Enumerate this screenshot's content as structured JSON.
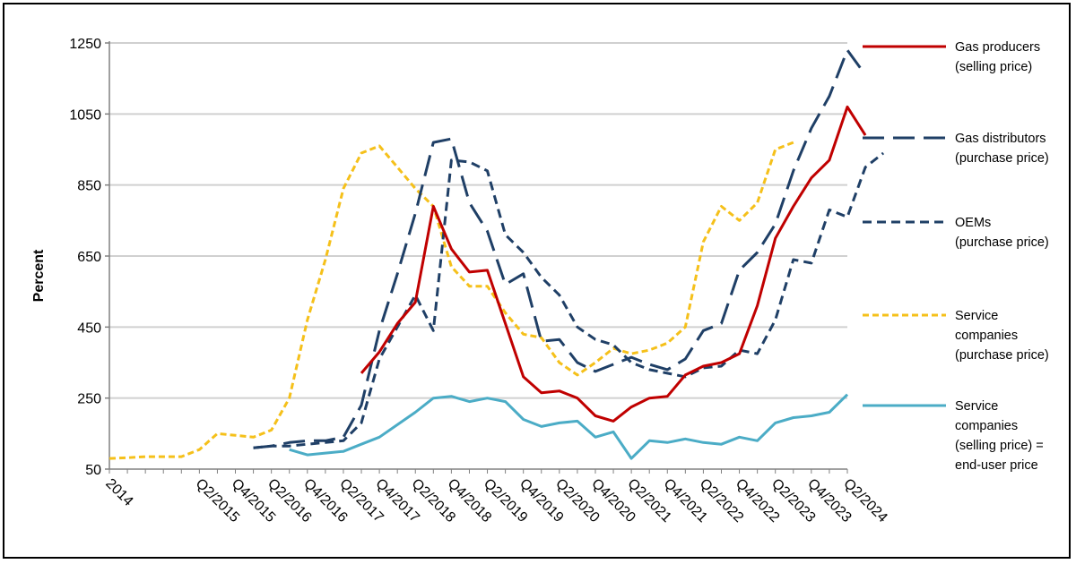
{
  "chart_data": {
    "type": "line",
    "title": "",
    "xlabel": "",
    "ylabel": "Percent",
    "ylim": [
      50,
      1250
    ],
    "yticks": [
      50,
      250,
      450,
      650,
      850,
      1050,
      1250
    ],
    "grid": "horizontal",
    "legend_position": "right",
    "x_tick_labels": [
      "2014",
      "Q2/2015",
      "Q4/2015",
      "Q2/2016",
      "Q4/2016",
      "Q2/2017",
      "Q4/2017",
      "Q2/2018",
      "Q4/2018",
      "Q2/2019",
      "Q4/2019",
      "Q2/2020",
      "Q4/2020",
      "Q2/2021",
      "Q4/2021",
      "Q2/2022",
      "Q4/2022",
      "Q2/2023",
      "Q4/2023",
      "Q2/2024"
    ],
    "series": [
      {
        "name": "Gas producers (selling price)",
        "legend_lines": [
          "Gas producers",
          "(selling price)"
        ],
        "color": "#c00000",
        "style": "solid",
        "values": [
          null,
          null,
          null,
          null,
          null,
          null,
          null,
          null,
          null,
          null,
          null,
          null,
          null,
          null,
          320,
          380,
          460,
          520,
          790,
          670,
          605,
          610,
          460,
          310,
          265,
          270,
          250,
          200,
          185,
          225,
          250,
          255,
          315,
          340,
          350,
          375,
          510,
          700,
          790,
          870,
          920,
          1070,
          990
        ]
      },
      {
        "name": "Gas distributors (purchase price)",
        "legend_lines": [
          "Gas distributors",
          "(purchase price)"
        ],
        "color": "#1f3f66",
        "style": "longdash",
        "values": [
          null,
          null,
          null,
          null,
          null,
          null,
          null,
          null,
          110,
          115,
          125,
          130,
          130,
          140,
          230,
          440,
          600,
          770,
          970,
          980,
          800,
          720,
          570,
          600,
          410,
          415,
          350,
          325,
          345,
          365,
          345,
          330,
          360,
          440,
          460,
          610,
          660,
          740,
          890,
          1010,
          1100,
          1230,
          1160
        ]
      },
      {
        "name": "OEMs (purchase price)",
        "legend_lines": [
          "OEMs",
          "(purchase price)"
        ],
        "color": "#1f3f66",
        "style": "shortdash",
        "values": [
          null,
          null,
          null,
          null,
          null,
          null,
          null,
          null,
          110,
          115,
          115,
          120,
          125,
          130,
          180,
          360,
          450,
          540,
          440,
          920,
          915,
          890,
          710,
          660,
          590,
          540,
          450,
          415,
          400,
          350,
          330,
          320,
          310,
          335,
          340,
          385,
          375,
          470,
          640,
          630,
          780,
          760,
          900,
          940
        ]
      },
      {
        "name": "Service companies (purchase price)",
        "legend_lines": [
          "Service",
          "companies",
          "(purchase price)"
        ],
        "color": "#f5c01a",
        "style": "dotdash",
        "values": [
          80,
          82,
          85,
          85,
          85,
          105,
          150,
          145,
          140,
          160,
          250,
          470,
          640,
          840,
          940,
          960,
          900,
          840,
          790,
          620,
          565,
          565,
          490,
          430,
          420,
          350,
          315,
          350,
          390,
          375,
          385,
          405,
          450,
          690,
          790,
          750,
          800,
          950,
          970
        ]
      },
      {
        "name": "Service companies (selling price) = end-user price",
        "legend_lines": [
          "Service",
          "companies",
          "(selling price) =",
          "end-user price"
        ],
        "color": "#4bacc6",
        "style": "solid",
        "values": [
          null,
          null,
          null,
          null,
          null,
          null,
          null,
          null,
          null,
          null,
          105,
          90,
          95,
          100,
          120,
          140,
          175,
          210,
          250,
          255,
          240,
          250,
          240,
          190,
          170,
          180,
          185,
          140,
          155,
          80,
          130,
          125,
          135,
          125,
          120,
          140,
          130,
          180,
          195,
          200,
          210,
          260
        ]
      }
    ]
  }
}
